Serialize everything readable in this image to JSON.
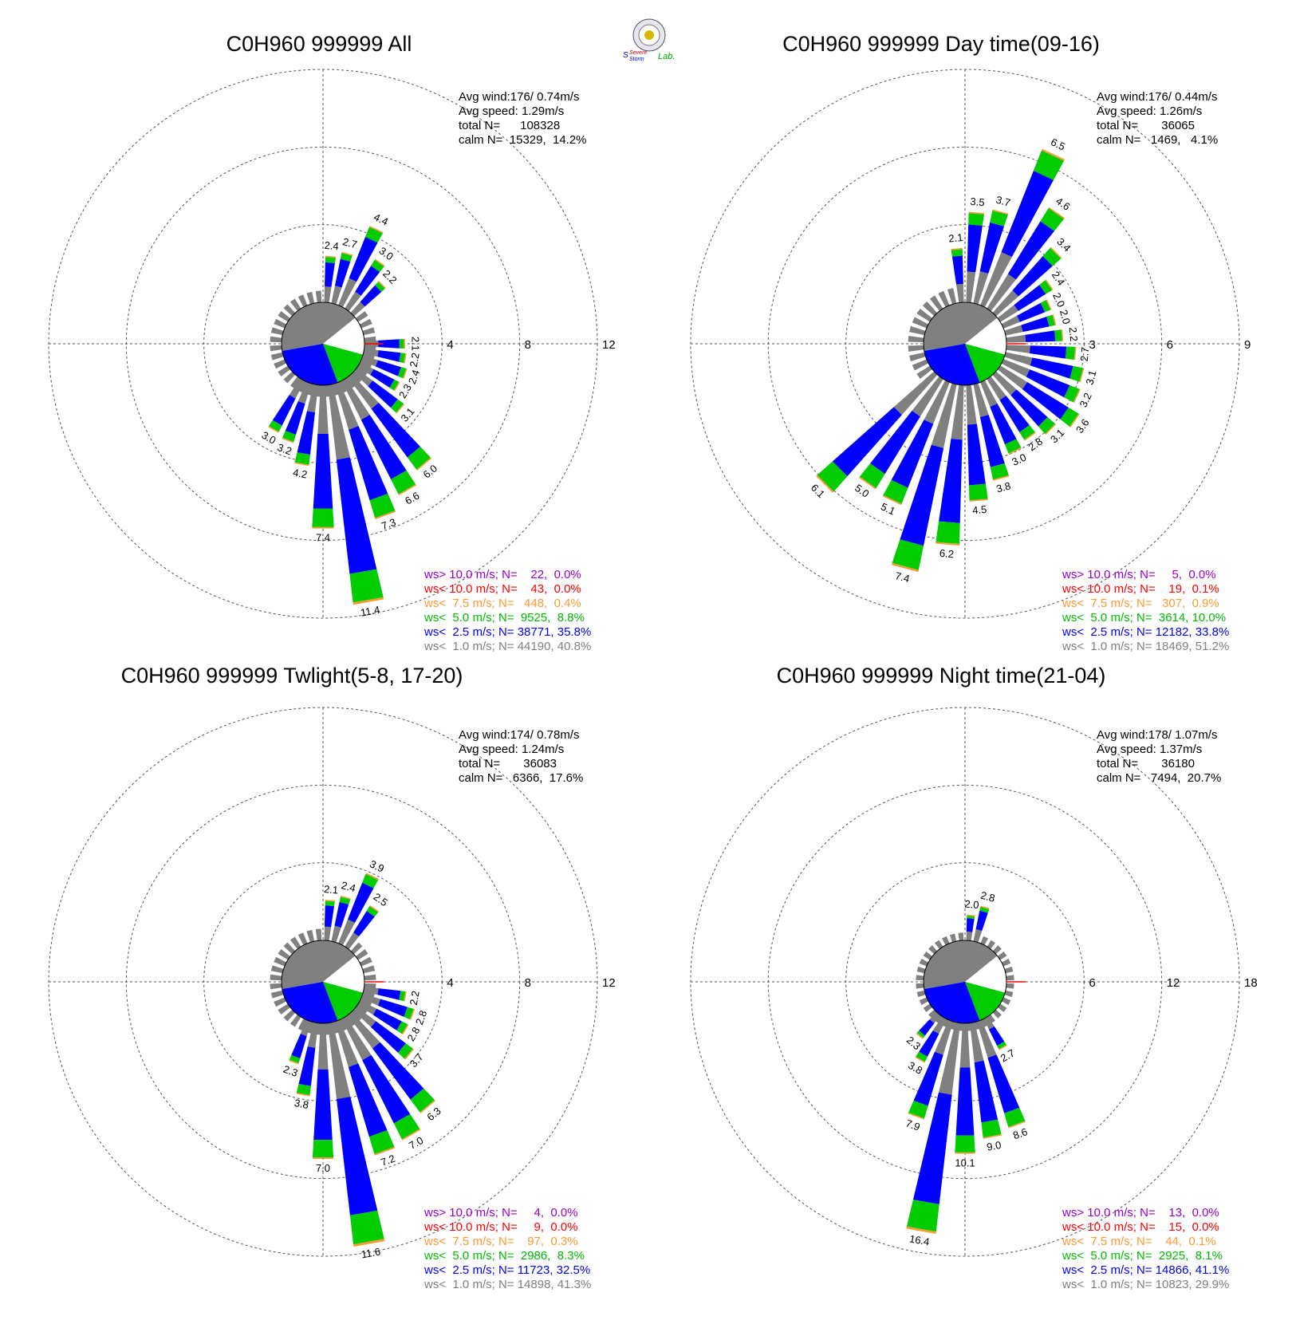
{
  "logo": {
    "text1": "Severe",
    "text2": "Storm",
    "text3": "Lab."
  },
  "colors": {
    "calm": "#808080",
    "lt1": "#808080",
    "lt2_5": "#0000ff",
    "lt5": "#00cc00",
    "lt7_5": "#ff9933",
    "lt10": "#ff0000",
    "gt10": "#9900cc"
  },
  "chart_data": [
    {
      "type": "wind-rose",
      "title": "C0H960 999999 All",
      "stats": [
        "Avg wind:176/ 0.74m/s",
        "Avg speed: 1.29m/s",
        "total N=      108328",
        "calm N=  15329,  14.2%"
      ],
      "rings": [
        "4",
        "8",
        "12"
      ],
      "ring_max": 12,
      "calm_pie": {
        "gray": 42,
        "white": 15,
        "green": 15,
        "blue": 28
      },
      "bars": [
        {
          "dir": 160,
          "value": 7.3,
          "label": "7.3"
        },
        {
          "dir": 170,
          "value": 11.4,
          "label": "11.4"
        },
        {
          "dir": 150,
          "value": 6.6,
          "label": "6.6"
        },
        {
          "dir": 140,
          "value": 6.0,
          "label": "6.0"
        },
        {
          "dir": 180,
          "value": 7.4,
          "label": "7.4"
        },
        {
          "dir": 190,
          "value": 4.2,
          "label": "4.2"
        },
        {
          "dir": 200,
          "value": 3.2,
          "label": "3.2"
        },
        {
          "dir": 210,
          "value": 3.0,
          "label": "3.0"
        },
        {
          "dir": 130,
          "value": 3.1,
          "label": "3.1"
        },
        {
          "dir": 120,
          "value": 2.3,
          "label": "2.3"
        },
        {
          "dir": 110,
          "value": 2.4,
          "label": "2.4"
        },
        {
          "dir": 100,
          "value": 2.2,
          "label": "2.2"
        },
        {
          "dir": 90,
          "value": 2.1,
          "label": "2.1"
        },
        {
          "dir": 25,
          "value": 4.4,
          "label": "4.4"
        },
        {
          "dir": 35,
          "value": 3.0,
          "label": "3.0"
        },
        {
          "dir": 45,
          "value": 2.2,
          "label": "2.2"
        },
        {
          "dir": 15,
          "value": 2.7,
          "label": "2.7"
        },
        {
          "dir": 5,
          "value": 2.4,
          "label": "2.4"
        }
      ],
      "legend": [
        {
          "key": "gt10",
          "text": "ws> 10.0 m/s; N=    22,  0.0%"
        },
        {
          "key": "lt10",
          "text": "ws< 10.0 m/s; N=    43,  0.0%"
        },
        {
          "key": "lt7_5",
          "text": "ws<  7.5 m/s; N=   448,  0.4%"
        },
        {
          "key": "lt5",
          "text": "ws<  5.0 m/s; N=  9525,  8.8%"
        },
        {
          "key": "lt2_5",
          "text": "ws<  2.5 m/s; N= 38771, 35.8%"
        },
        {
          "key": "lt1",
          "text": "ws<  1.0 m/s; N= 44190, 40.8%"
        }
      ]
    },
    {
      "type": "wind-rose",
      "title": "C0H960 999999 Day time(09-16)",
      "stats": [
        "Avg wind:176/ 0.44m/s",
        "Avg speed: 1.26m/s",
        "total N=       36065",
        "calm N=   1469,   4.1%"
      ],
      "rings": [
        "3",
        "6",
        "9"
      ],
      "ring_max": 9,
      "calm_pie": {
        "gray": 42,
        "white": 15,
        "green": 15,
        "blue": 28
      },
      "bars": [
        {
          "dir": 25,
          "value": 6.5,
          "label": "6.5"
        },
        {
          "dir": 35,
          "value": 4.6,
          "label": "4.6"
        },
        {
          "dir": 45,
          "value": 3.4,
          "label": "3.4"
        },
        {
          "dir": 15,
          "value": 3.7,
          "label": "3.7"
        },
        {
          "dir": 5,
          "value": 3.5,
          "label": "3.5"
        },
        {
          "dir": -5,
          "value": 2.1,
          "label": "2.1"
        },
        {
          "dir": 55,
          "value": 2.4,
          "label": "2.4"
        },
        {
          "dir": 65,
          "value": 2.0,
          "label": "2.0"
        },
        {
          "dir": 75,
          "value": 2.0,
          "label": "2.0"
        },
        {
          "dir": 85,
          "value": 2.2,
          "label": "2.2"
        },
        {
          "dir": 95,
          "value": 2.7,
          "label": "2.7"
        },
        {
          "dir": 105,
          "value": 3.1,
          "label": "3.1"
        },
        {
          "dir": 115,
          "value": 3.2,
          "label": "3.2"
        },
        {
          "dir": 125,
          "value": 3.6,
          "label": "3.6"
        },
        {
          "dir": 135,
          "value": 3.1,
          "label": "3.1"
        },
        {
          "dir": 145,
          "value": 2.8,
          "label": "2.8"
        },
        {
          "dir": 155,
          "value": 3.0,
          "label": "3.0"
        },
        {
          "dir": 165,
          "value": 3.8,
          "label": "3.8"
        },
        {
          "dir": 175,
          "value": 4.5,
          "label": "4.5"
        },
        {
          "dir": 185,
          "value": 6.2,
          "label": "6.2"
        },
        {
          "dir": 195,
          "value": 7.4,
          "label": "7.4"
        },
        {
          "dir": 205,
          "value": 5.1,
          "label": "5.1"
        },
        {
          "dir": 215,
          "value": 5.0,
          "label": "5.0"
        },
        {
          "dir": 225,
          "value": 6.1,
          "label": "6.1"
        }
      ],
      "legend": [
        {
          "key": "gt10",
          "text": "ws> 10.0 m/s; N=     5,  0.0%"
        },
        {
          "key": "lt10",
          "text": "ws< 10.0 m/s; N=    19,  0.1%"
        },
        {
          "key": "lt7_5",
          "text": "ws<  7.5 m/s; N=   307,  0.9%"
        },
        {
          "key": "lt5",
          "text": "ws<  5.0 m/s; N=  3614, 10.0%"
        },
        {
          "key": "lt2_5",
          "text": "ws<  2.5 m/s; N= 12182, 33.8%"
        },
        {
          "key": "lt1",
          "text": "ws<  1.0 m/s; N= 18469, 51.2%"
        }
      ]
    },
    {
      "type": "wind-rose",
      "title": "C0H960 999999 Twlight(5-8, 17-20)",
      "stats": [
        "Avg wind:174/ 0.78m/s",
        "Avg speed: 1.24m/s",
        "total N=       36083",
        "calm N=   6366,  17.6%"
      ],
      "rings": [
        "4",
        "8",
        "12"
      ],
      "ring_max": 12,
      "calm_pie": {
        "gray": 42,
        "white": 15,
        "green": 15,
        "blue": 28
      },
      "bars": [
        {
          "dir": 170,
          "value": 11.6,
          "label": "11.6"
        },
        {
          "dir": 160,
          "value": 7.2,
          "label": "7.2"
        },
        {
          "dir": 150,
          "value": 7.0,
          "label": "7.0"
        },
        {
          "dir": 140,
          "value": 6.3,
          "label": "6.3"
        },
        {
          "dir": 180,
          "value": 7.0,
          "label": "7.0"
        },
        {
          "dir": 190,
          "value": 3.8,
          "label": "3.8"
        },
        {
          "dir": 200,
          "value": 2.3,
          "label": "2.3"
        },
        {
          "dir": 130,
          "value": 3.7,
          "label": "3.7"
        },
        {
          "dir": 120,
          "value": 2.8,
          "label": "2.8"
        },
        {
          "dir": 110,
          "value": 2.8,
          "label": "2.8"
        },
        {
          "dir": 100,
          "value": 2.2,
          "label": "2.2"
        },
        {
          "dir": 25,
          "value": 3.9,
          "label": "3.9"
        },
        {
          "dir": 35,
          "value": 2.5,
          "label": "2.5"
        },
        {
          "dir": 15,
          "value": 2.4,
          "label": "2.4"
        },
        {
          "dir": 5,
          "value": 2.1,
          "label": "2.1"
        }
      ],
      "legend": [
        {
          "key": "gt10",
          "text": "ws> 10.0 m/s; N=     4,  0.0%"
        },
        {
          "key": "lt10",
          "text": "ws< 10.0 m/s; N=     9,  0.0%"
        },
        {
          "key": "lt7_5",
          "text": "ws<  7.5 m/s; N=    97,  0.3%"
        },
        {
          "key": "lt5",
          "text": "ws<  5.0 m/s; N=  2986,  8.3%"
        },
        {
          "key": "lt2_5",
          "text": "ws<  2.5 m/s; N= 11723, 32.5%"
        },
        {
          "key": "lt1",
          "text": "ws<  1.0 m/s; N= 14898, 41.3%"
        }
      ]
    },
    {
      "type": "wind-rose",
      "title": "C0H960 999999 Night time(21-04)",
      "stats": [
        "Avg wind:178/ 1.07m/s",
        "Avg speed: 1.37m/s",
        "total N=       36180",
        "calm N=   7494,  20.7%"
      ],
      "rings": [
        "6",
        "12",
        "18"
      ],
      "ring_max": 18,
      "calm_pie": {
        "gray": 42,
        "white": 15,
        "green": 15,
        "blue": 28
      },
      "bars": [
        {
          "dir": 190,
          "value": 16.4,
          "label": "16.4"
        },
        {
          "dir": 180,
          "value": 10.1,
          "label": "10.1"
        },
        {
          "dir": 170,
          "value": 9.0,
          "label": "9.0"
        },
        {
          "dir": 160,
          "value": 8.6,
          "label": "8.6"
        },
        {
          "dir": 200,
          "value": 7.9,
          "label": "7.9"
        },
        {
          "dir": 210,
          "value": 3.8,
          "label": "3.8"
        },
        {
          "dir": 220,
          "value": 2.3,
          "label": "2.3"
        },
        {
          "dir": 150,
          "value": 2.7,
          "label": "2.7"
        },
        {
          "dir": 15,
          "value": 2.8,
          "label": "2.8"
        },
        {
          "dir": 5,
          "value": 2.0,
          "label": "2.0"
        }
      ],
      "legend": [
        {
          "key": "gt10",
          "text": "ws> 10.0 m/s; N=    13,  0.0%"
        },
        {
          "key": "lt10",
          "text": "ws< 10.0 m/s; N=    15,  0.0%"
        },
        {
          "key": "lt7_5",
          "text": "ws<  7.5 m/s; N=    44,  0.1%"
        },
        {
          "key": "lt5",
          "text": "ws<  5.0 m/s; N=  2925,  8.1%"
        },
        {
          "key": "lt2_5",
          "text": "ws<  2.5 m/s; N= 14866, 41.1%"
        },
        {
          "key": "lt1",
          "text": "ws<  1.0 m/s; N= 10823, 29.9%"
        }
      ]
    }
  ]
}
